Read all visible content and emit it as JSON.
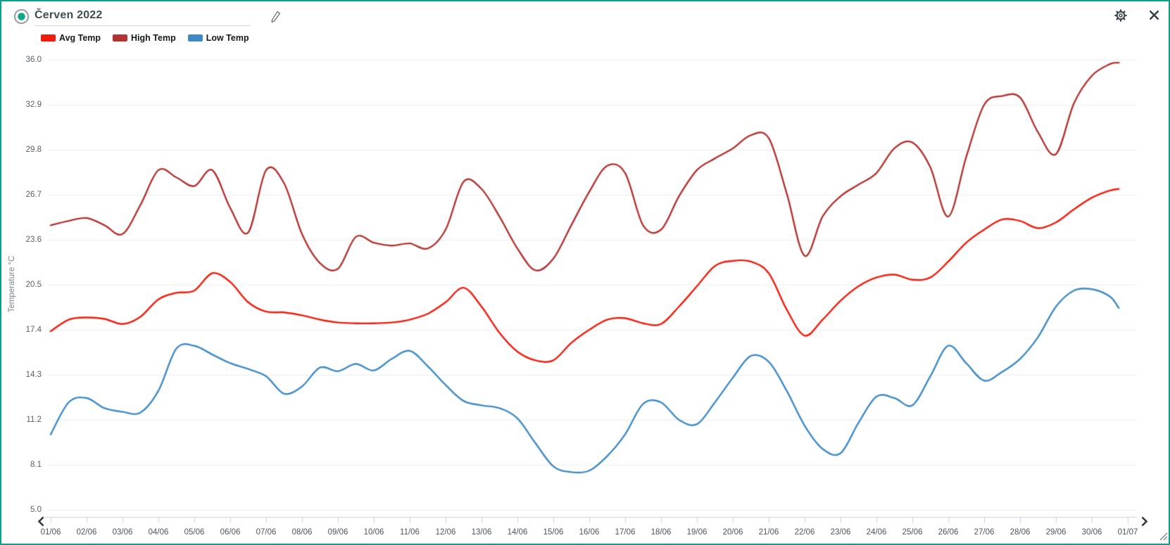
{
  "widget": {
    "title": "Červen 2022",
    "border_color": "#0aa08c"
  },
  "legend": {
    "items": [
      {
        "label": "Avg Temp",
        "color": "#f01b0c"
      },
      {
        "label": "High Temp",
        "color": "#b23330"
      },
      {
        "label": "Low Temp",
        "color": "#3d8ac6"
      }
    ]
  },
  "chart_data": {
    "type": "line",
    "title": "Červen 2022",
    "xlabel": "",
    "ylabel": "Temperature °C",
    "ylim": [
      5.0,
      36.0
    ],
    "y_ticks": [
      36.0,
      32.9,
      29.8,
      26.7,
      23.6,
      20.5,
      17.4,
      14.3,
      11.2,
      8.1,
      5.0
    ],
    "x_tick_labels": [
      "01/06",
      "02/06",
      "03/06",
      "04/06",
      "05/06",
      "06/06",
      "07/06",
      "08/06",
      "09/06",
      "10/06",
      "11/06",
      "12/06",
      "13/06",
      "14/06",
      "15/06",
      "16/06",
      "17/06",
      "18/06",
      "19/06",
      "20/06",
      "21/06",
      "22/06",
      "23/06",
      "24/06",
      "25/06",
      "26/06",
      "27/06",
      "28/06",
      "29/06",
      "30/06",
      "01/07"
    ],
    "grid": "horizontal",
    "legend_position": "top-left",
    "x_unit": "day of June (1 = 01/06, 31 = 01/07)",
    "x": [
      1,
      1.5,
      2,
      2.5,
      3,
      3.5,
      4,
      4.5,
      5,
      5.5,
      6,
      6.5,
      7,
      7.5,
      8,
      8.5,
      9,
      9.5,
      10,
      10.5,
      11,
      11.5,
      12,
      12.5,
      13,
      13.5,
      14,
      14.5,
      15,
      15.5,
      16,
      16.5,
      17,
      17.5,
      18,
      18.5,
      19,
      19.5,
      20,
      20.5,
      21,
      21.5,
      22,
      22.5,
      23,
      23.5,
      24,
      24.5,
      25,
      25.5,
      26,
      26.5,
      27,
      27.5,
      28,
      28.5,
      29,
      29.5,
      30,
      30.5,
      30.75
    ],
    "series": [
      {
        "name": "Avg Temp",
        "color": "#f01b0c",
        "values": [
          17.3,
          18.1,
          18.25,
          18.15,
          17.8,
          18.3,
          19.5,
          19.95,
          20.1,
          21.3,
          20.7,
          19.3,
          18.65,
          18.6,
          18.4,
          18.1,
          17.9,
          17.85,
          17.85,
          17.9,
          18.1,
          18.5,
          19.3,
          20.3,
          19.0,
          17.2,
          15.9,
          15.3,
          15.3,
          16.5,
          17.4,
          18.1,
          18.2,
          17.85,
          17.8,
          19.0,
          20.4,
          21.8,
          22.15,
          22.1,
          21.3,
          18.8,
          17.0,
          18.1,
          19.4,
          20.4,
          21.0,
          21.2,
          20.85,
          21.0,
          22.1,
          23.4,
          24.3,
          25.0,
          24.9,
          24.4,
          24.8,
          25.7,
          26.5,
          27.0,
          27.1
        ]
      },
      {
        "name": "High Temp",
        "color": "#b23330",
        "values": [
          24.6,
          24.9,
          25.1,
          24.6,
          24.0,
          26.0,
          28.4,
          27.9,
          27.3,
          28.4,
          25.8,
          24.1,
          28.4,
          27.5,
          24.0,
          22.0,
          21.6,
          23.8,
          23.4,
          23.2,
          23.35,
          23.0,
          24.3,
          27.6,
          27.1,
          25.2,
          23.0,
          21.5,
          22.3,
          24.6,
          26.9,
          28.7,
          28.2,
          24.6,
          24.3,
          26.6,
          28.4,
          29.2,
          29.9,
          30.8,
          30.6,
          26.8,
          22.5,
          25.2,
          26.6,
          27.4,
          28.2,
          29.9,
          30.3,
          28.6,
          25.2,
          29.3,
          32.9,
          33.5,
          33.4,
          31.0,
          29.5,
          33.0,
          34.9,
          35.7,
          35.8
        ]
      },
      {
        "name": "Low Temp",
        "color": "#3d8ac6",
        "values": [
          10.2,
          12.4,
          12.7,
          12.0,
          11.75,
          11.7,
          13.2,
          16.1,
          16.3,
          15.7,
          15.1,
          14.7,
          14.2,
          13.0,
          13.5,
          14.8,
          14.55,
          15.05,
          14.6,
          15.4,
          15.95,
          14.9,
          13.6,
          12.5,
          12.2,
          12.0,
          11.3,
          9.6,
          8.0,
          7.6,
          7.7,
          8.7,
          10.2,
          12.3,
          12.4,
          11.2,
          10.9,
          12.4,
          14.1,
          15.6,
          15.2,
          13.2,
          10.8,
          9.2,
          8.9,
          11.0,
          12.8,
          12.7,
          12.2,
          14.2,
          16.3,
          15.1,
          13.9,
          14.5,
          15.4,
          16.9,
          19.0,
          20.1,
          20.2,
          19.7,
          18.9
        ]
      }
    ]
  }
}
